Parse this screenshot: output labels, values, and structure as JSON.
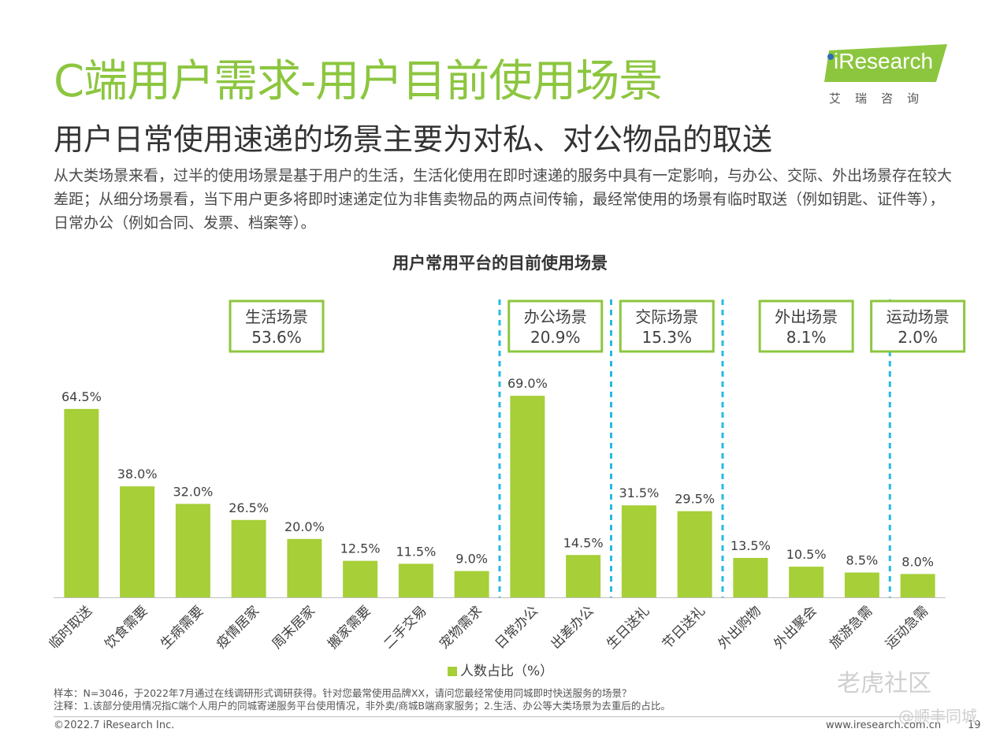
{
  "header": {
    "title": "C端用户需求-用户目前使用场景",
    "subtitle": "用户日常使用速递的场景主要为对私、对公物品的取送",
    "description": "从大类场景来看，过半的使用场景是基于用户的生活，生活化使用在即时速递的服务中具有一定影响，与办公、交际、外出场景存在较大差距；从细分场景看，当下用户更多将即时速递定位为非售卖物品的两点间传输，最经常使用的场景有临时取送（例如钥匙、证件等），日常办公（例如合同、发票、档案等）。"
  },
  "logo": {
    "text": "iResearch",
    "subtitle": "艾瑞咨询"
  },
  "colors": {
    "accent": "#8cc63f",
    "bar": "#a6cf38",
    "divider": "#27b9e6",
    "box_border": "#8cc63f"
  },
  "chart_data": {
    "type": "bar",
    "title": "用户常用平台的目前使用场景",
    "categories": [
      "临时取送",
      "饮食需要",
      "生病需要",
      "疫情居家",
      "周末居家",
      "搬家需要",
      "二手交易",
      "宠物需求",
      "日常办公",
      "出差办公",
      "生日送礼",
      "节日送礼",
      "外出购物",
      "外出聚会",
      "旅游急需",
      "运动急需"
    ],
    "series": [
      {
        "name": "人数占比（%）",
        "values": [
          64.5,
          38.0,
          32.0,
          26.5,
          20.0,
          12.5,
          11.5,
          9.0,
          69.0,
          14.5,
          31.5,
          29.5,
          13.5,
          10.5,
          8.5,
          8.0
        ]
      }
    ],
    "value_labels": [
      "64.5%",
      "38.0%",
      "32.0%",
      "26.5%",
      "20.0%",
      "12.5%",
      "11.5%",
      "9.0%",
      "69.0%",
      "14.5%",
      "31.5%",
      "29.5%",
      "13.5%",
      "10.5%",
      "8.5%",
      "8.0%"
    ],
    "groups": [
      {
        "name": "生活场景",
        "share": "53.6%",
        "start": 0,
        "end": 7
      },
      {
        "name": "办公场景",
        "share": "20.9%",
        "start": 8,
        "end": 9
      },
      {
        "name": "交际场景",
        "share": "15.3%",
        "start": 10,
        "end": 11
      },
      {
        "name": "外出场景",
        "share": "8.1%",
        "start": 12,
        "end": 14
      },
      {
        "name": "运动场景",
        "share": "2.0%",
        "start": 15,
        "end": 15
      }
    ],
    "legend": "人数占比（%）",
    "legend_position": "bottom",
    "ylim": [
      0,
      75
    ],
    "grid": false
  },
  "notes": {
    "sample": "样本：N=3046，于2022年7月通过在线调研形式调研获得。针对您最常使用品牌XX，请问您最经常使用同城即时快送服务的场景？",
    "note": "注释：1.该部分使用情况指C端个人用户的同城寄递服务平台使用情况，非外卖/商城B端商家服务；2.生活、办公等大类场景为去重后的占比。"
  },
  "footer": {
    "copyright": "©2022.7 iResearch Inc.",
    "site": "www.iresearch.com.cn",
    "page": "19"
  },
  "watermark": {
    "line1": "老虎社区",
    "line2": "@顺丰同城"
  }
}
